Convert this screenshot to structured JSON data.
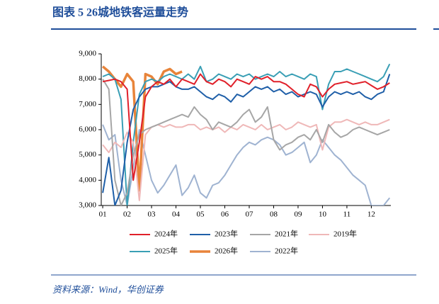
{
  "chart_data": {
    "type": "line",
    "title": "图表 5   26城地铁客运量走势",
    "source": "资料来源：Wind，华创证券",
    "x": [
      1,
      1.25,
      1.5,
      1.75,
      2,
      2.25,
      2.5,
      2.75,
      3,
      3.25,
      3.5,
      3.75,
      4,
      4.25,
      4.5,
      4.75,
      5,
      5.25,
      5.5,
      5.75,
      6,
      6.25,
      6.5,
      6.75,
      7,
      7.25,
      7.5,
      7.75,
      8,
      8.25,
      8.5,
      8.75,
      9,
      9.25,
      9.5,
      9.75,
      10,
      10.25,
      10.5,
      10.75,
      11,
      11.25,
      11.5,
      11.75,
      12,
      12.25,
      12.5,
      12.75
    ],
    "xlim": [
      0.94,
      12.8
    ],
    "xticks": [
      {
        "value": 1,
        "label": "01"
      },
      {
        "value": 2,
        "label": "02"
      },
      {
        "value": 3,
        "label": "03"
      },
      {
        "value": 4,
        "label": "04"
      },
      {
        "value": 5,
        "label": "05"
      },
      {
        "value": 6,
        "label": "06"
      },
      {
        "value": 7,
        "label": "07"
      },
      {
        "value": 8,
        "label": "08"
      },
      {
        "value": 9,
        "label": "09"
      },
      {
        "value": 10,
        "label": "10"
      },
      {
        "value": 11,
        "label": "11"
      },
      {
        "value": 12,
        "label": "12"
      }
    ],
    "ylim": [
      3000,
      9000
    ],
    "yticks": [
      {
        "value": 3000,
        "label": "3,000"
      },
      {
        "value": 4000,
        "label": "4,000"
      },
      {
        "value": 5000,
        "label": "5,000"
      },
      {
        "value": 6000,
        "label": "6,000"
      },
      {
        "value": 7000,
        "label": "7,000"
      },
      {
        "value": 8000,
        "label": "8,000"
      },
      {
        "value": 9000,
        "label": "9,000"
      }
    ],
    "series": [
      {
        "name": "2024年",
        "color": "#e0202a",
        "line_width": 2,
        "values": [
          7900,
          7950,
          8000,
          7900,
          7600,
          4000,
          5500,
          7300,
          7700,
          7900,
          7800,
          8000,
          7700,
          8000,
          7900,
          7800,
          8200,
          7900,
          7800,
          8000,
          7900,
          7700,
          8000,
          7900,
          7800,
          8100,
          8000,
          8100,
          7900,
          7900,
          7800,
          7600,
          7400,
          7300,
          7800,
          7700,
          7300,
          7600,
          7800,
          7850,
          7900,
          7800,
          7850,
          7900,
          7750,
          7600,
          7700,
          7850
        ]
      },
      {
        "name": "2023年",
        "color": "#1f5fa8",
        "line_width": 2,
        "values": [
          3500,
          4900,
          3000,
          3600,
          5500,
          6800,
          7300,
          7600,
          7700,
          7700,
          7800,
          7900,
          7700,
          7600,
          7600,
          7700,
          7500,
          7300,
          7200,
          7400,
          7300,
          7100,
          7400,
          7300,
          7500,
          7700,
          7600,
          7700,
          7500,
          7600,
          7400,
          7500,
          7300,
          7400,
          7500,
          7400,
          6900,
          7300,
          7500,
          7400,
          7500,
          7400,
          7500,
          7300,
          7200,
          7400,
          7500,
          8200
        ]
      },
      {
        "name": "2021年",
        "color": "#a6a6a6",
        "line_width": 2,
        "values": [
          8000,
          7600,
          4000,
          3000,
          3500,
          5000,
          5800,
          6000,
          6100,
          6200,
          6300,
          6400,
          6500,
          6600,
          6500,
          6900,
          6600,
          6400,
          6000,
          6300,
          6200,
          6100,
          6300,
          6600,
          6800,
          6300,
          6500,
          6900,
          5600,
          5200,
          5400,
          5500,
          5700,
          5800,
          5600,
          6000,
          5500,
          6200,
          5900,
          5700,
          5800,
          6000,
          6100,
          6000,
          5900,
          5800,
          5900,
          6000
        ]
      },
      {
        "name": "2019年",
        "color": "#efb8b8",
        "line_width": 2,
        "values": [
          5400,
          5100,
          5500,
          5300,
          5900,
          5500,
          3200,
          5800,
          6100,
          6200,
          6100,
          6200,
          6100,
          6100,
          6200,
          6200,
          6000,
          6100,
          6000,
          6100,
          5900,
          6100,
          6000,
          6200,
          6100,
          6000,
          6200,
          6000,
          6100,
          6200,
          6000,
          6100,
          6300,
          6200,
          6100,
          6200,
          5200,
          6100,
          6300,
          6300,
          6400,
          6300,
          6200,
          6300,
          6200,
          6200,
          6300,
          6400
        ]
      },
      {
        "name": "2025年",
        "color": "#3a9fb5",
        "line_width": 2,
        "values": [
          8100,
          8200,
          8000,
          7200,
          3000,
          5500,
          7400,
          7900,
          8000,
          7900,
          8100,
          8200,
          8100,
          8000,
          8200,
          8000,
          8500,
          7900,
          8000,
          8200,
          8100,
          8000,
          8200,
          8100,
          8200,
          8000,
          8100,
          8200,
          8100,
          8300,
          8100,
          8200,
          8100,
          8000,
          8200,
          8100,
          6800,
          7800,
          8300,
          8300,
          8400,
          8300,
          8200,
          8100,
          8000,
          7900,
          8100,
          8600
        ]
      },
      {
        "name": "2026年",
        "color": "#e8843a",
        "line_width": 3.5,
        "values": [
          8500,
          8300,
          8000,
          7700,
          8200,
          7900,
          3600,
          8200,
          8100,
          7800,
          8300,
          8400,
          8200,
          8300,
          null,
          null,
          null,
          null,
          null,
          null,
          null,
          null,
          null,
          null,
          null,
          null,
          null,
          null,
          null,
          null,
          null,
          null,
          null,
          null,
          null,
          null,
          null,
          null,
          null,
          null,
          null,
          null,
          null,
          null,
          null,
          null,
          null,
          null
        ]
      },
      {
        "name": "2022年",
        "color": "#9fb3d1",
        "line_width": 2,
        "values": [
          6200,
          5600,
          5800,
          4000,
          3000,
          4500,
          6000,
          5000,
          4000,
          3500,
          3800,
          4200,
          4600,
          3400,
          3700,
          4200,
          3500,
          3300,
          3800,
          3900,
          4200,
          4600,
          5000,
          5300,
          5500,
          5400,
          5600,
          5700,
          5600,
          5400,
          5000,
          5100,
          5300,
          5500,
          4700,
          5000,
          5600,
          5300,
          5000,
          4800,
          4500,
          4200,
          4000,
          3800,
          3000,
          3000,
          3000,
          3300
        ]
      }
    ]
  }
}
